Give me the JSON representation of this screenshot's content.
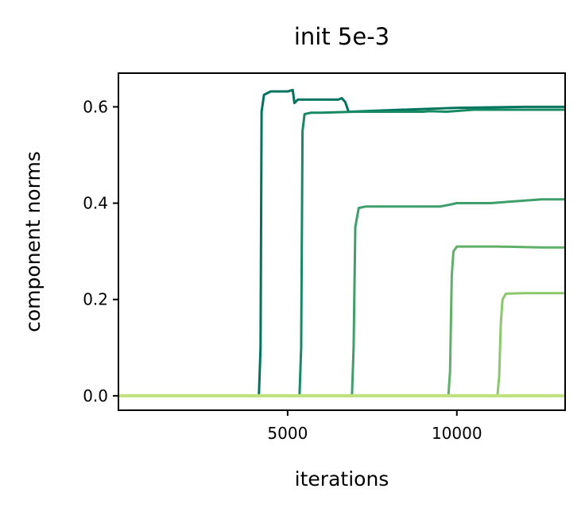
{
  "chart_data": {
    "type": "line",
    "title": "init 5e-3",
    "xlabel": "iterations",
    "ylabel": "component norms",
    "xlim": [
      0,
      13200
    ],
    "ylim": [
      -0.03,
      0.67
    ],
    "xticks": [
      5000,
      10000
    ],
    "xtick_labels": [
      "5000",
      "10000"
    ],
    "yticks": [
      0.0,
      0.2,
      0.4,
      0.6
    ],
    "ytick_labels": [
      "0.0",
      "0.2",
      "0.4",
      "0.6"
    ],
    "grid": false,
    "legend": "none",
    "series": [
      {
        "color": "#00755e",
        "x": [
          0,
          4150,
          4200,
          4230,
          4300,
          4500,
          5000,
          5150,
          5200,
          5300,
          5500,
          6000,
          6500,
          6600,
          6700,
          6800,
          6850,
          8000,
          10000,
          12000,
          13200
        ],
        "y": [
          0.0,
          0.0,
          0.1,
          0.59,
          0.625,
          0.632,
          0.632,
          0.635,
          0.608,
          0.615,
          0.615,
          0.615,
          0.615,
          0.618,
          0.61,
          0.59,
          0.59,
          0.593,
          0.598,
          0.6,
          0.6
        ]
      },
      {
        "color": "#178a63",
        "x": [
          0,
          5350,
          5400,
          5440,
          5500,
          5700,
          6000,
          7000,
          8000,
          9000,
          9200,
          9700,
          10500,
          11000,
          12000,
          13200
        ],
        "y": [
          0.0,
          0.0,
          0.1,
          0.55,
          0.585,
          0.588,
          0.588,
          0.59,
          0.59,
          0.59,
          0.591,
          0.59,
          0.594,
          0.594,
          0.594,
          0.594
        ]
      },
      {
        "color": "#3f9f6b",
        "x": [
          0,
          6900,
          6950,
          7000,
          7100,
          7300,
          8000,
          9000,
          9500,
          9800,
          10000,
          11000,
          12500,
          13200
        ],
        "y": [
          0.0,
          0.0,
          0.1,
          0.35,
          0.39,
          0.393,
          0.393,
          0.393,
          0.393,
          0.397,
          0.4,
          0.4,
          0.408,
          0.408
        ]
      },
      {
        "color": "#5fb068",
        "x": [
          0,
          9750,
          9800,
          9850,
          9900,
          10000,
          10500,
          11200,
          12500,
          13200
        ],
        "y": [
          0.0,
          0.0,
          0.05,
          0.25,
          0.3,
          0.31,
          0.31,
          0.31,
          0.308,
          0.308
        ]
      },
      {
        "color": "#8ac86a",
        "x": [
          0,
          11200,
          11250,
          11300,
          11350,
          11450,
          12000,
          13200
        ],
        "y": [
          0.0,
          0.0,
          0.04,
          0.15,
          0.2,
          0.212,
          0.213,
          0.213
        ]
      },
      {
        "color": "#bfe07a",
        "x": [
          0,
          13200
        ],
        "y": [
          0.0,
          0.0
        ]
      }
    ]
  }
}
